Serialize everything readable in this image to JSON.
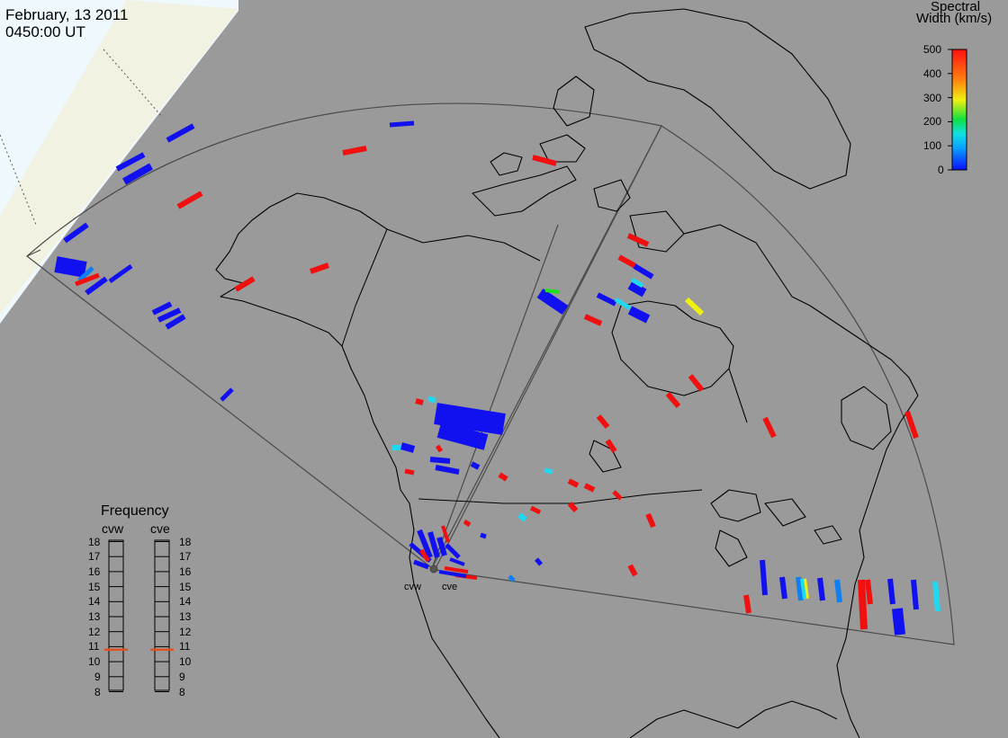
{
  "header": {
    "date": "February, 13 2011",
    "time": "0450:00 UT"
  },
  "color_scale": {
    "title_line1": "Spectral",
    "title_line2": "Width (km/s)",
    "min": 0,
    "max": 500,
    "tick_labels": [
      "500",
      "400",
      "300",
      "200",
      "100",
      "0"
    ],
    "tick_values": [
      500,
      400,
      300,
      200,
      100,
      0
    ]
  },
  "frequency_panel": {
    "title": "Frequency",
    "left_radar": "cvw",
    "right_radar": "cve",
    "scale_labels": [
      "18",
      "17",
      "16",
      "15",
      "14",
      "13",
      "12",
      "11",
      "10",
      "9",
      "8"
    ],
    "scale_values": [
      18,
      17,
      16,
      15,
      14,
      13,
      12,
      11,
      10,
      9,
      8
    ],
    "cvw_frequency": 10.8,
    "cve_frequency": 10.8,
    "marker_color": "#e05020"
  },
  "radar_site_labels": {
    "west": "cvw",
    "east": "cve"
  },
  "colors": {
    "background": "#9a9a9a",
    "land_outline": "#000000",
    "fov_outline": "#4a4a4a",
    "night_side": "#eef8fd",
    "twilight": "#f1f1e2",
    "scatter_low": "#1010f0",
    "scatter_high": "#f01010"
  }
}
